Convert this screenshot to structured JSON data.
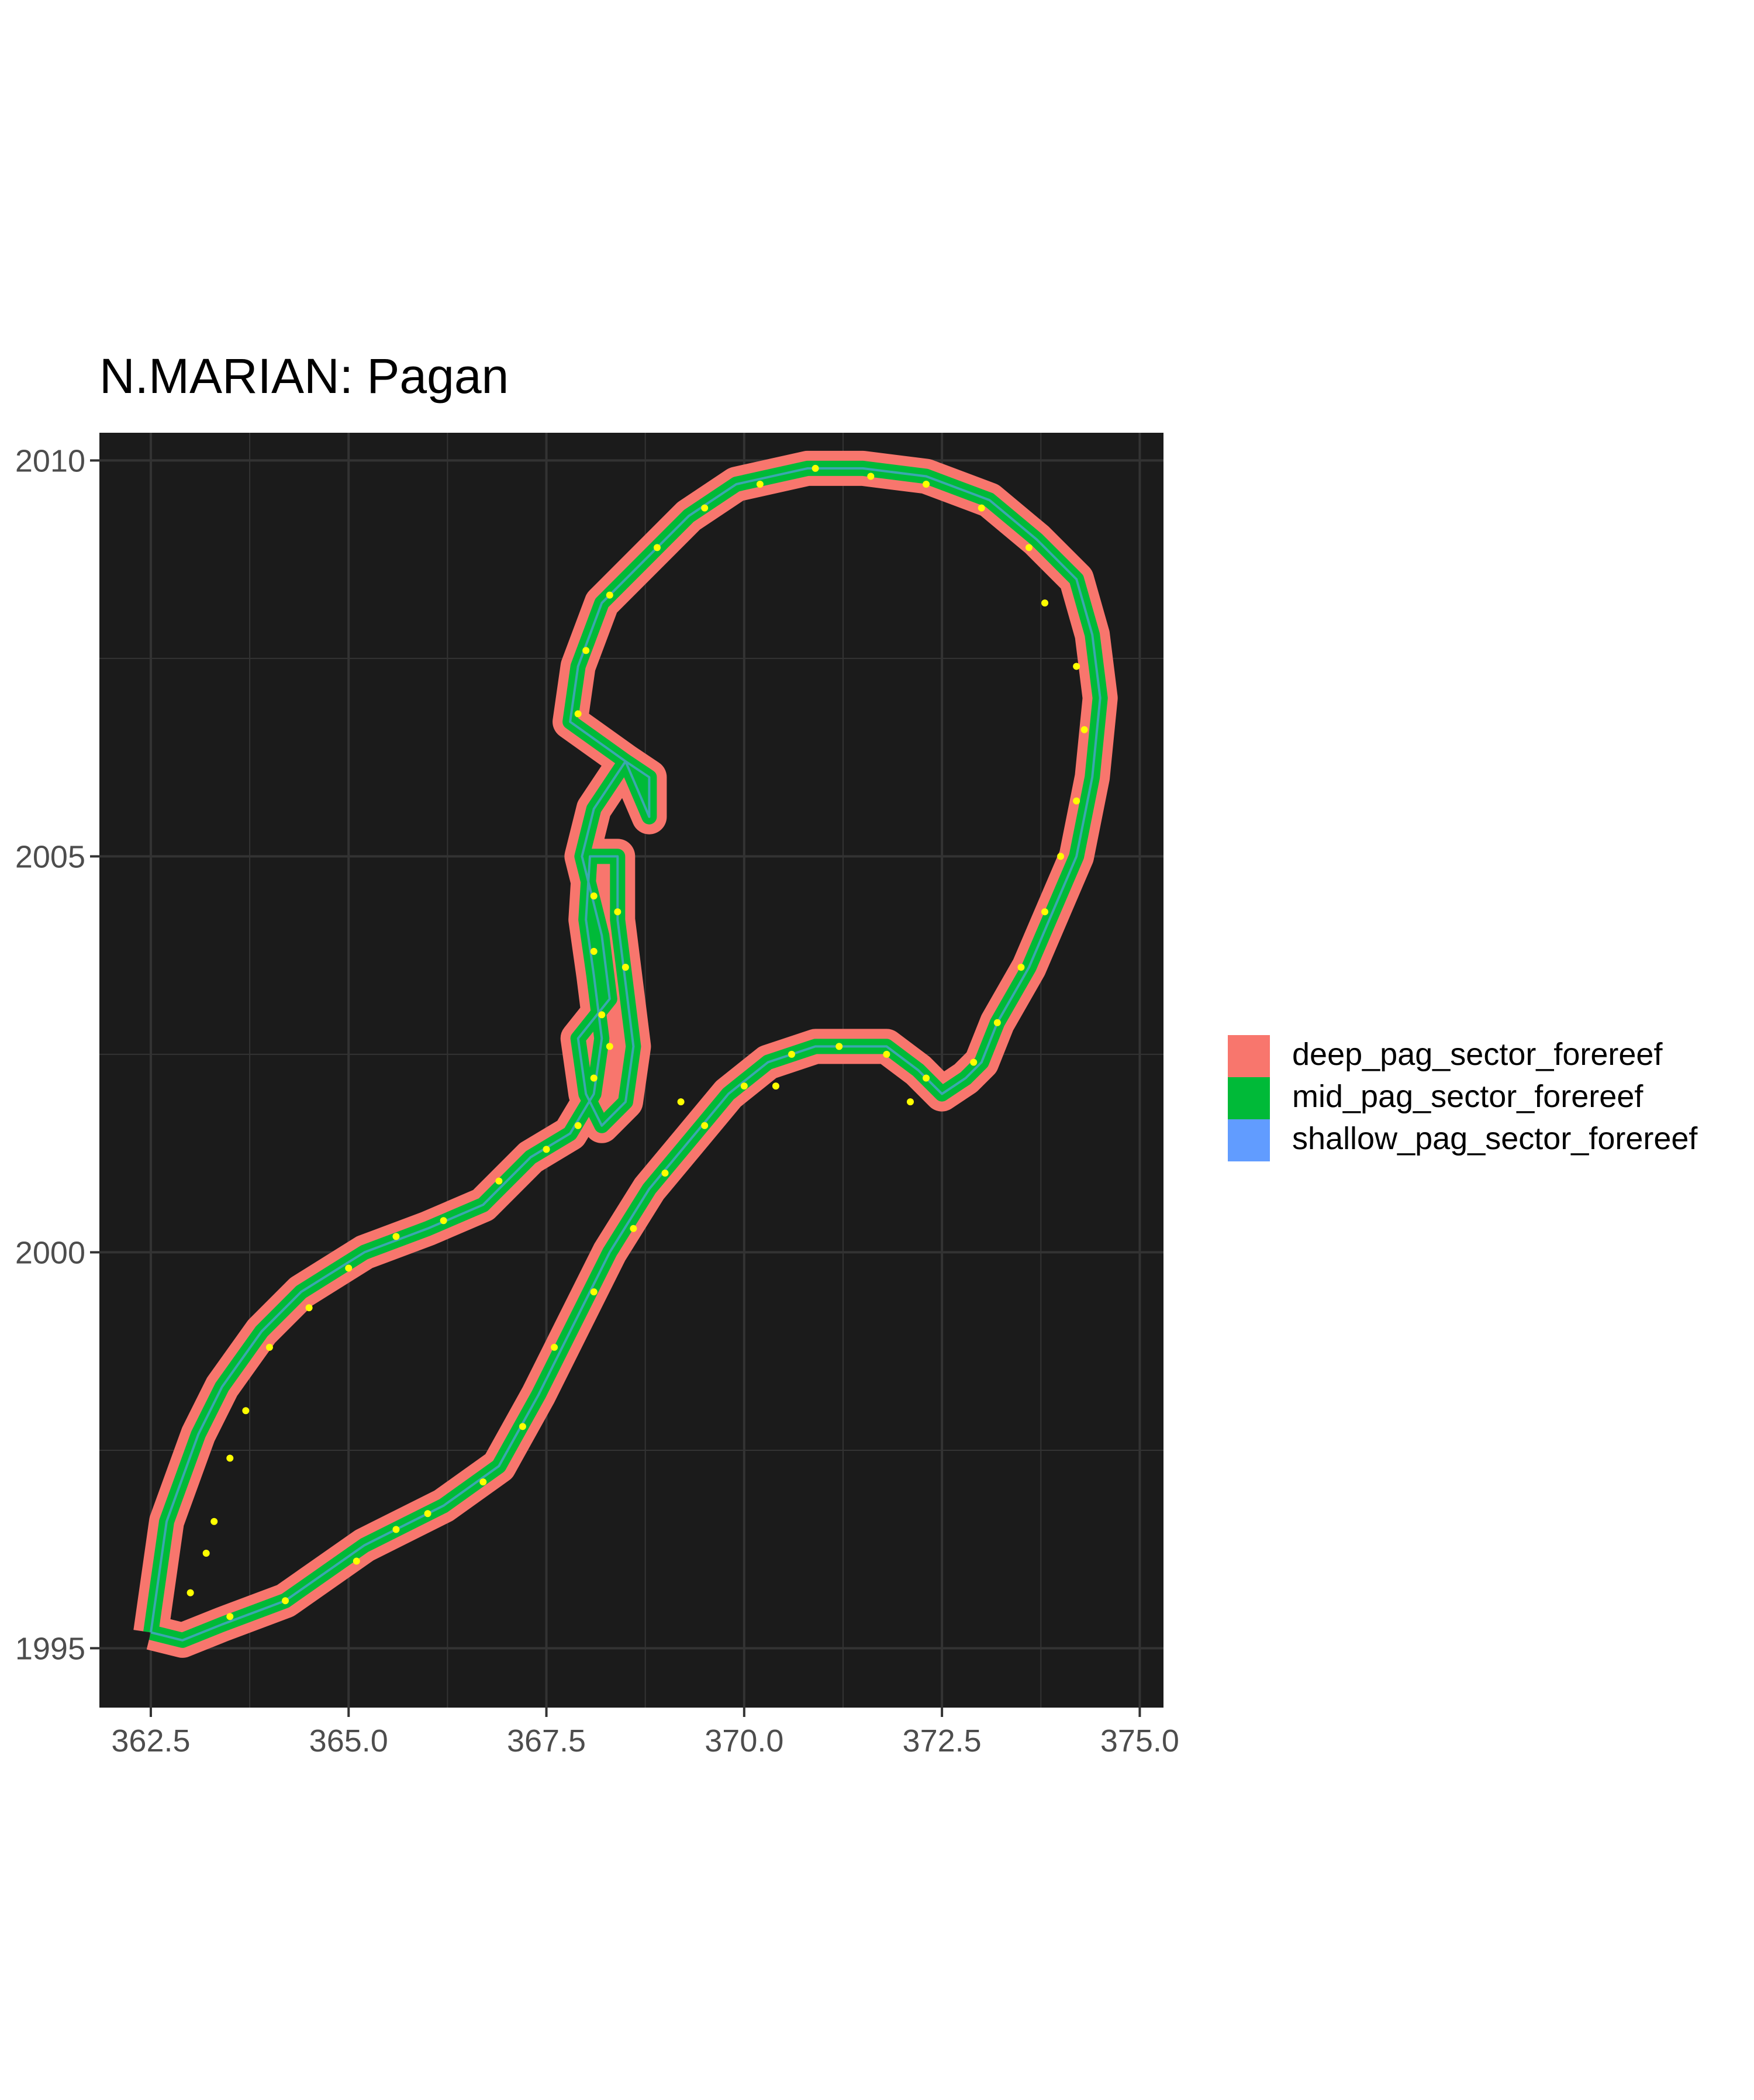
{
  "title": "N.MARIAN: Pagan",
  "panel_bg": "#1b1b1b",
  "grid_color": "#333333",
  "colors": {
    "deep": "#F8766D",
    "mid": "#00BA38",
    "shallow": "#619CFF",
    "points": "#FFFF00"
  },
  "x_axis": {
    "range": [
      361.85,
      375.3
    ],
    "ticks": [
      362.5,
      365.0,
      367.5,
      370.0,
      372.5,
      375.0
    ],
    "tick_labels": [
      "362.5",
      "365.0",
      "367.5",
      "370.0",
      "372.5",
      "375.0"
    ]
  },
  "y_axis": {
    "range": [
      1994.25,
      2010.35
    ],
    "ticks": [
      1995,
      2000,
      2005,
      2010
    ],
    "tick_labels": [
      "1995",
      "2000",
      "2005",
      "2010"
    ]
  },
  "legend": [
    {
      "label": "deep_pag_sector_forereef",
      "color": "#F8766D"
    },
    {
      "label": "mid_pag_sector_forereef",
      "color": "#00BA38"
    },
    {
      "label": "shallow_pag_sector_forereef",
      "color": "#619CFF"
    }
  ],
  "outline": [
    [
      362.5,
      1995.2
    ],
    [
      362.7,
      1996.6
    ],
    [
      363.1,
      1997.7
    ],
    [
      363.4,
      1998.3
    ],
    [
      363.9,
      1999.0
    ],
    [
      364.4,
      1999.5
    ],
    [
      365.2,
      2000.0
    ],
    [
      366.0,
      2000.3
    ],
    [
      366.7,
      2000.6
    ],
    [
      367.3,
      2001.2
    ],
    [
      367.8,
      2001.5
    ],
    [
      368.1,
      2002.0
    ],
    [
      368.2,
      2002.7
    ],
    [
      368.1,
      2003.5
    ],
    [
      368.0,
      2004.2
    ],
    [
      368.05,
      2005.0
    ],
    [
      368.4,
      2005.0
    ],
    [
      368.4,
      2004.2
    ],
    [
      368.5,
      2003.4
    ],
    [
      368.6,
      2002.6
    ],
    [
      368.5,
      2001.9
    ],
    [
      368.2,
      2001.6
    ],
    [
      368.0,
      2002.0
    ],
    [
      367.9,
      2002.7
    ],
    [
      368.3,
      2003.2
    ],
    [
      368.2,
      2004.0
    ],
    [
      368.0,
      2004.8
    ],
    [
      367.95,
      2005.0
    ],
    [
      368.1,
      2005.6
    ],
    [
      368.5,
      2006.2
    ],
    [
      368.8,
      2006.0
    ],
    [
      368.8,
      2005.5
    ],
    [
      368.5,
      2006.2
    ],
    [
      367.8,
      2006.7
    ],
    [
      367.9,
      2007.4
    ],
    [
      368.2,
      2008.2
    ],
    [
      368.8,
      2008.8
    ],
    [
      369.3,
      2009.3
    ],
    [
      369.9,
      2009.7
    ],
    [
      370.8,
      2009.9
    ],
    [
      371.5,
      2009.9
    ],
    [
      372.3,
      2009.8
    ],
    [
      373.1,
      2009.5
    ],
    [
      373.7,
      2009.0
    ],
    [
      374.2,
      2008.5
    ],
    [
      374.4,
      2007.8
    ],
    [
      374.5,
      2007.0
    ],
    [
      374.4,
      2006.0
    ],
    [
      374.2,
      2005.0
    ],
    [
      373.9,
      2004.3
    ],
    [
      373.6,
      2003.6
    ],
    [
      373.2,
      2002.9
    ],
    [
      373.0,
      2002.4
    ],
    [
      372.8,
      2002.2
    ],
    [
      372.5,
      2002.0
    ],
    [
      372.2,
      2002.3
    ],
    [
      371.8,
      2002.6
    ],
    [
      371.4,
      2002.6
    ],
    [
      370.9,
      2002.6
    ],
    [
      370.3,
      2002.4
    ],
    [
      369.8,
      2002.0
    ],
    [
      369.3,
      2001.4
    ],
    [
      368.8,
      2000.8
    ],
    [
      368.3,
      2000.0
    ],
    [
      367.8,
      1999.0
    ],
    [
      367.4,
      1998.2
    ],
    [
      366.9,
      1997.3
    ],
    [
      366.2,
      1996.8
    ],
    [
      365.2,
      1996.3
    ],
    [
      364.2,
      1995.6
    ],
    [
      363.4,
      1995.3
    ],
    [
      362.9,
      1995.1
    ],
    [
      362.5,
      1995.2
    ]
  ],
  "sites": [
    [
      363.0,
      1995.7
    ],
    [
      363.2,
      1996.2
    ],
    [
      363.3,
      1996.6
    ],
    [
      363.5,
      1997.4
    ],
    [
      363.7,
      1998.0
    ],
    [
      364.0,
      1998.8
    ],
    [
      364.5,
      1999.3
    ],
    [
      365.0,
      1999.8
    ],
    [
      365.6,
      2000.2
    ],
    [
      366.2,
      2000.4
    ],
    [
      366.9,
      2000.9
    ],
    [
      367.5,
      2001.3
    ],
    [
      367.9,
      2001.6
    ],
    [
      368.1,
      2002.2
    ],
    [
      368.2,
      2003.0
    ],
    [
      368.1,
      2003.8
    ],
    [
      368.1,
      2004.5
    ],
    [
      368.4,
      2004.3
    ],
    [
      368.5,
      2003.6
    ],
    [
      368.3,
      2002.6
    ],
    [
      367.9,
      2006.8
    ],
    [
      368.0,
      2007.6
    ],
    [
      368.3,
      2008.3
    ],
    [
      368.9,
      2008.9
    ],
    [
      369.5,
      2009.4
    ],
    [
      370.2,
      2009.7
    ],
    [
      370.9,
      2009.9
    ],
    [
      371.6,
      2009.8
    ],
    [
      372.3,
      2009.7
    ],
    [
      373.0,
      2009.4
    ],
    [
      373.6,
      2008.9
    ],
    [
      373.8,
      2008.2
    ],
    [
      374.2,
      2007.4
    ],
    [
      374.3,
      2006.6
    ],
    [
      374.2,
      2005.7
    ],
    [
      374.0,
      2005.0
    ],
    [
      373.8,
      2004.3
    ],
    [
      373.5,
      2003.6
    ],
    [
      373.2,
      2002.9
    ],
    [
      372.9,
      2002.4
    ],
    [
      372.3,
      2002.2
    ],
    [
      371.8,
      2002.5
    ],
    [
      371.2,
      2002.6
    ],
    [
      370.6,
      2002.5
    ],
    [
      370.0,
      2002.1
    ],
    [
      369.5,
      2001.6
    ],
    [
      369.0,
      2001.0
    ],
    [
      368.6,
      2000.3
    ],
    [
      368.1,
      1999.5
    ],
    [
      367.6,
      1998.8
    ],
    [
      367.2,
      1997.8
    ],
    [
      366.7,
      1997.1
    ],
    [
      366.0,
      1996.7
    ],
    [
      365.1,
      1996.1
    ],
    [
      364.2,
      1995.6
    ],
    [
      363.5,
      1995.4
    ],
    [
      365.6,
      1996.5
    ],
    [
      369.2,
      2001.9
    ],
    [
      370.4,
      2002.1
    ],
    [
      372.1,
      2001.9
    ]
  ]
}
